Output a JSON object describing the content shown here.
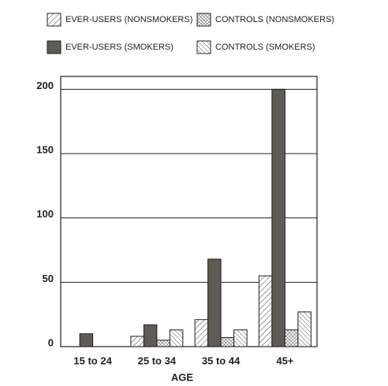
{
  "chart_data": {
    "type": "bar",
    "x_label": "AGE",
    "categories": [
      "15 to 24",
      "25 to 34",
      "35 to 44",
      "45+"
    ],
    "series": [
      {
        "name": "EVER-USERS (NONSMOKERS)",
        "color": "#5f5b55",
        "pattern": "diagonal",
        "values": [
          0,
          8,
          21,
          55
        ]
      },
      {
        "name": "EVER-USERS (SMOKERS)",
        "color": "#5f5b55",
        "pattern": "solid",
        "values": [
          10,
          17,
          68,
          200
        ]
      },
      {
        "name": "CONTROLS (NONSMOKERS)",
        "color": "#5f5b55",
        "pattern": "crosshatch",
        "values": [
          0,
          5,
          7,
          13
        ]
      },
      {
        "name": "CONTROLS (SMOKERS)",
        "color": "#5f5b55",
        "pattern": "back-diagonal",
        "values": [
          0,
          13,
          13,
          27
        ]
      }
    ],
    "ylim": [
      0,
      210
    ],
    "yticks": [
      0,
      50,
      100,
      150,
      200
    ],
    "grid": true
  }
}
